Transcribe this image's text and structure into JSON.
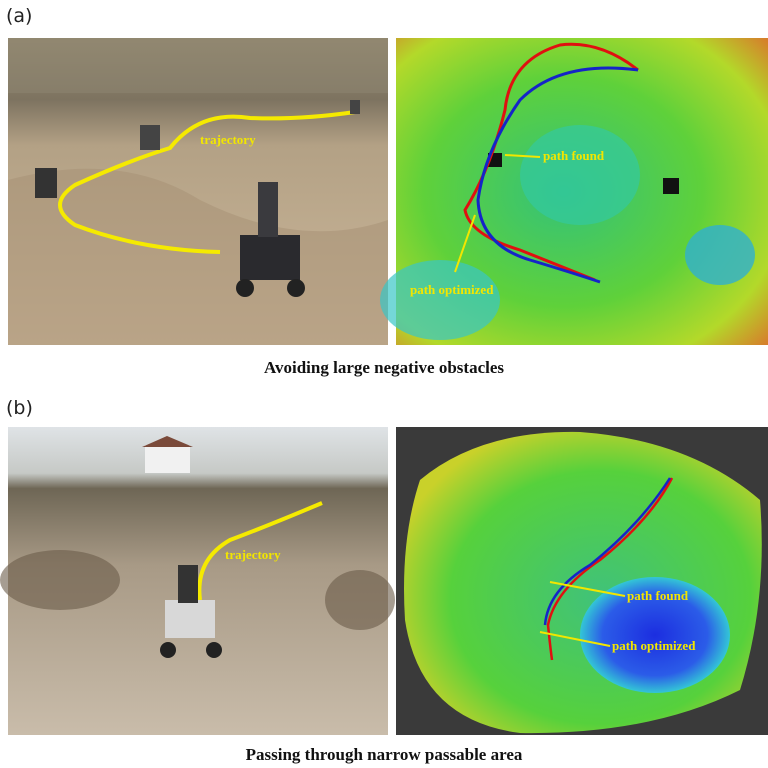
{
  "panels": [
    {
      "label": "(a)",
      "photo_annotation": "trajectory",
      "map_annotations": [
        "path found",
        "path optimized"
      ],
      "caption": "Avoiding large negative obstacles"
    },
    {
      "label": "(b)",
      "photo_annotation": "trajectory",
      "map_annotations": [
        "path found",
        "path optimized"
      ],
      "caption": "Passing through narrow passable area"
    }
  ]
}
